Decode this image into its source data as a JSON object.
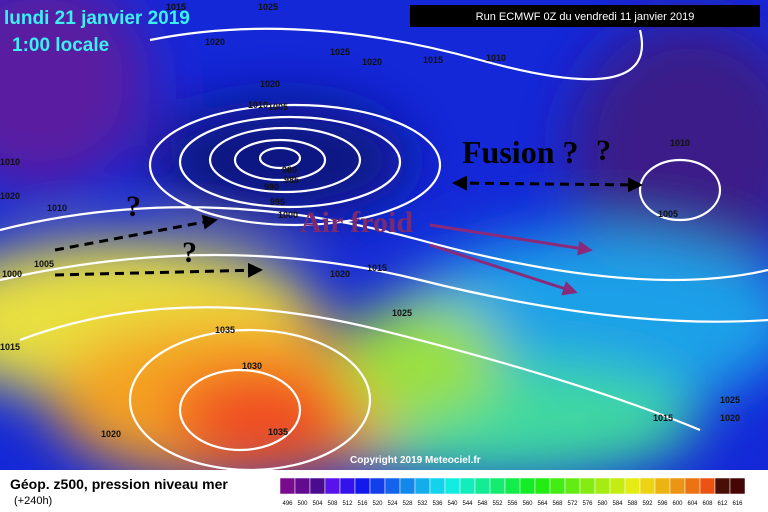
{
  "header": {
    "date": "lundi 21 janvier 2019",
    "time": "1:00 locale",
    "run": "Run ECMWF 0Z du vendredi 11 janvier 2019"
  },
  "annotations": {
    "fusion": "Fusion ?",
    "cold_air": "Air froid",
    "questions": [
      "?",
      "?",
      "?"
    ]
  },
  "isobar_labels": [
    "1015",
    "1025",
    "1020",
    "1025",
    "1020",
    "1015",
    "1010",
    "1020",
    "1010",
    "1005",
    "1010",
    "1020",
    "1010",
    "980",
    "985",
    "990",
    "995",
    "1000",
    "1005",
    "1000",
    "1020",
    "1015",
    "1025",
    "1035",
    "1030",
    "1035",
    "1020",
    "1015",
    "1010",
    "1005",
    "1015",
    "1025",
    "1020"
  ],
  "copyright": "Copyright 2019 Meteociel.fr",
  "legend": {
    "title": "Géop. z500, pression niveau mer",
    "lead": "(+240h)",
    "scale": [
      "496",
      "500",
      "504",
      "508",
      "512",
      "516",
      "520",
      "524",
      "528",
      "532",
      "536",
      "540",
      "544",
      "548",
      "552",
      "556",
      "560",
      "564",
      "568",
      "572",
      "576",
      "580",
      "584",
      "588",
      "592",
      "596",
      "600",
      "604",
      "608",
      "612",
      "616"
    ]
  }
}
